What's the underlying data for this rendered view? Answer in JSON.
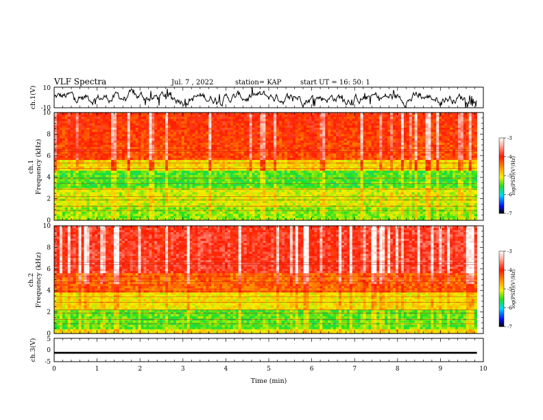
{
  "header": {
    "title": "VLF Spectra",
    "date": "Jul. 7 , 2022",
    "station": "station= KAP",
    "start": "start UT =  16: 50: 1"
  },
  "colors": {
    "hot": "#ff2a10",
    "orange": "#ff8a00",
    "yellow": "#f5e600",
    "green": "#20e020",
    "cyan": "#00e0ff",
    "blue": "#0000ff",
    "trace": "#000000"
  },
  "chart_data": [
    {
      "type": "line",
      "name": "ch1-waveform",
      "ylabel": "ch.1(V)",
      "ylim": [
        -10,
        10
      ],
      "yticks": [
        "10",
        "-10"
      ],
      "xlim": [
        0,
        10
      ]
    },
    {
      "type": "heatmap",
      "name": "ch1-spectrogram",
      "ylabel_top": "ch.1",
      "ylabel": "Frequency (kHz)",
      "ylim": [
        0,
        10
      ],
      "yticks": [
        "0",
        "2",
        "4",
        "6",
        "8",
        "10"
      ],
      "xlim": [
        0,
        10
      ],
      "data_end_min": 9.85,
      "colorbar": {
        "label": "log(PSD)(V²/Hz)",
        "range": [
          -7,
          -3
        ],
        "ticks": [
          "-3",
          "-4",
          "-5",
          "-6",
          "-7"
        ]
      }
    },
    {
      "type": "heatmap",
      "name": "ch2-spectrogram",
      "ylabel_top": "ch.2",
      "ylabel": "Frequency (kHz)",
      "ylim": [
        0,
        10
      ],
      "yticks": [
        "0",
        "2",
        "4",
        "6",
        "8",
        "10"
      ],
      "xlim": [
        0,
        10
      ],
      "data_end_min": 9.85,
      "colorbar": {
        "label": "log(PSD)(V²/Hz)",
        "range": [
          -7,
          -3
        ],
        "ticks": [
          "-3",
          "-4",
          "-5",
          "-6",
          "-7"
        ]
      }
    },
    {
      "type": "line",
      "name": "ch3-waveform",
      "ylabel": "ch.3(V)",
      "ylim": [
        -5,
        5
      ],
      "yticks": [
        "5",
        "0",
        "-5"
      ],
      "xlim": [
        0,
        10
      ]
    }
  ],
  "xaxis": {
    "label": "Time (min)",
    "ticks": [
      "0",
      "1",
      "2",
      "3",
      "4",
      "5",
      "6",
      "7",
      "8",
      "9",
      "10"
    ]
  }
}
